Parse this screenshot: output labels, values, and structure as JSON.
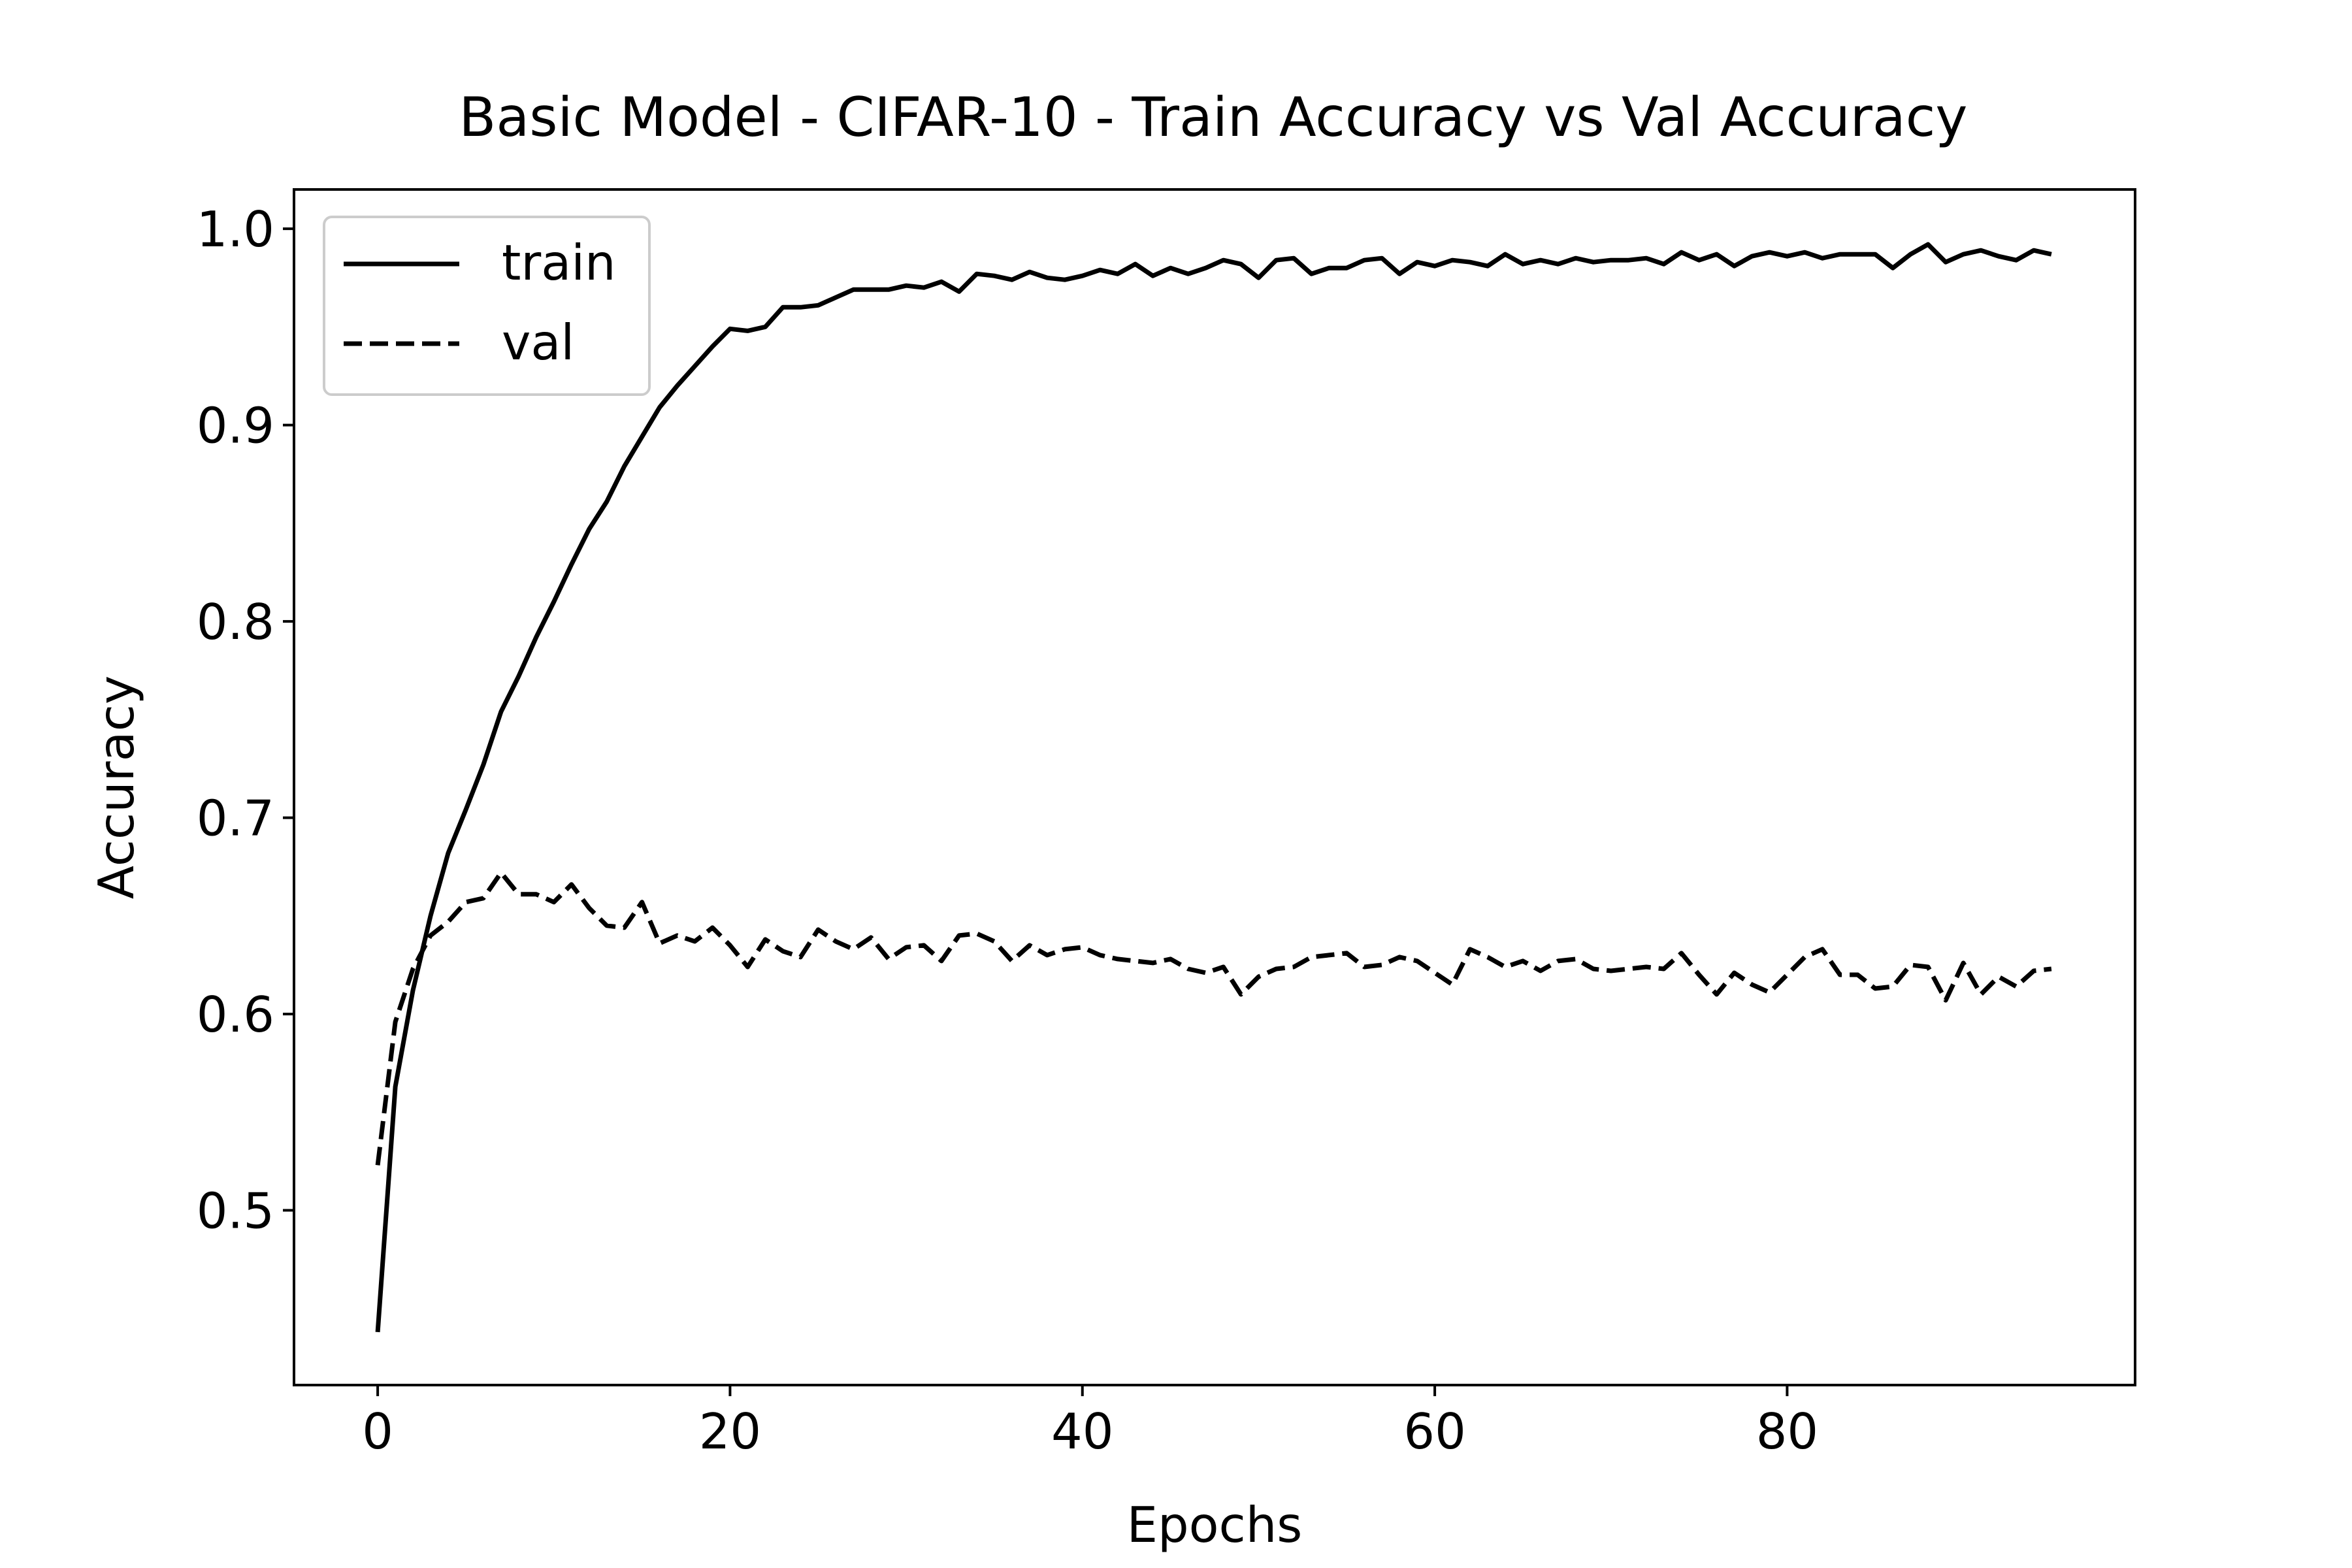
{
  "chart_data": {
    "type": "line",
    "title": "Basic Model - CIFAR-10 - Train Accuracy vs Val Accuracy",
    "xlabel": "Epochs",
    "ylabel": "Accuracy",
    "xlim": [
      -4.75,
      99.75
    ],
    "ylim": [
      0.411,
      1.02
    ],
    "xticks": [
      0,
      20,
      40,
      60,
      80
    ],
    "xtick_labels": [
      "0",
      "20",
      "40",
      "60",
      "80"
    ],
    "yticks": [
      0.5,
      0.6,
      0.7,
      0.8,
      0.9,
      1.0
    ],
    "ytick_labels": [
      "0.5",
      "0.6",
      "0.7",
      "0.8",
      "0.9",
      "1.0"
    ],
    "grid": false,
    "legend_position": "upper-left",
    "series": [
      {
        "name": "train",
        "style": "solid",
        "color": "#000000",
        "x": [
          0,
          1,
          2,
          3,
          4,
          5,
          6,
          7,
          8,
          9,
          10,
          11,
          12,
          13,
          14,
          15,
          16,
          17,
          18,
          19,
          20,
          21,
          22,
          23,
          24,
          25,
          26,
          27,
          28,
          29,
          30,
          31,
          32,
          33,
          34,
          35,
          36,
          37,
          38,
          39,
          40,
          41,
          42,
          43,
          44,
          45,
          46,
          47,
          48,
          49,
          50,
          51,
          52,
          53,
          54,
          55,
          56,
          57,
          58,
          59,
          60,
          61,
          62,
          63,
          64,
          65,
          66,
          67,
          68,
          69,
          70,
          71,
          72,
          73,
          74,
          75,
          76,
          77,
          78,
          79,
          80,
          81,
          82,
          83,
          84,
          85,
          86,
          87,
          88,
          89,
          90,
          91,
          92,
          93,
          94,
          95
        ],
        "values": [
          0.438,
          0.563,
          0.612,
          0.65,
          0.682,
          0.704,
          0.727,
          0.754,
          0.772,
          0.792,
          0.81,
          0.829,
          0.847,
          0.861,
          0.879,
          0.894,
          0.909,
          0.92,
          0.93,
          0.94,
          0.949,
          0.948,
          0.95,
          0.96,
          0.96,
          0.961,
          0.965,
          0.969,
          0.969,
          0.969,
          0.971,
          0.97,
          0.973,
          0.968,
          0.977,
          0.976,
          0.974,
          0.978,
          0.975,
          0.974,
          0.976,
          0.979,
          0.977,
          0.982,
          0.976,
          0.98,
          0.977,
          0.98,
          0.984,
          0.982,
          0.975,
          0.984,
          0.985,
          0.977,
          0.98,
          0.98,
          0.984,
          0.985,
          0.977,
          0.983,
          0.981,
          0.984,
          0.983,
          0.981,
          0.987,
          0.982,
          0.984,
          0.982,
          0.985,
          0.983,
          0.984,
          0.984,
          0.985,
          0.982,
          0.988,
          0.984,
          0.987,
          0.981,
          0.986,
          0.988,
          0.986,
          0.988,
          0.985,
          0.987,
          0.987,
          0.987,
          0.98,
          0.987,
          0.992,
          0.983,
          0.987,
          0.989,
          0.986,
          0.984,
          0.989,
          0.987
        ]
      },
      {
        "name": "val",
        "style": "dashed",
        "color": "#000000",
        "x": [
          0,
          1,
          2,
          3,
          4,
          5,
          6,
          7,
          8,
          9,
          10,
          11,
          12,
          13,
          14,
          15,
          16,
          17,
          18,
          19,
          20,
          21,
          22,
          23,
          24,
          25,
          26,
          27,
          28,
          29,
          30,
          31,
          32,
          33,
          34,
          35,
          36,
          37,
          38,
          39,
          40,
          41,
          42,
          43,
          44,
          45,
          46,
          47,
          48,
          49,
          50,
          51,
          52,
          53,
          54,
          55,
          56,
          57,
          58,
          59,
          60,
          61,
          62,
          63,
          64,
          65,
          66,
          67,
          68,
          69,
          70,
          71,
          72,
          73,
          74,
          75,
          76,
          77,
          78,
          79,
          80,
          81,
          82,
          83,
          84,
          85,
          86,
          87,
          88,
          89,
          90,
          91,
          92,
          93,
          94,
          95
        ],
        "values": [
          0.523,
          0.596,
          0.623,
          0.64,
          0.647,
          0.657,
          0.659,
          0.672,
          0.661,
          0.661,
          0.657,
          0.666,
          0.654,
          0.645,
          0.644,
          0.657,
          0.636,
          0.64,
          0.637,
          0.644,
          0.635,
          0.624,
          0.638,
          0.632,
          0.629,
          0.643,
          0.637,
          0.633,
          0.639,
          0.628,
          0.634,
          0.635,
          0.627,
          0.64,
          0.641,
          0.637,
          0.627,
          0.635,
          0.63,
          0.633,
          0.634,
          0.63,
          0.628,
          0.627,
          0.626,
          0.628,
          0.623,
          0.621,
          0.624,
          0.61,
          0.619,
          0.623,
          0.624,
          0.629,
          0.63,
          0.631,
          0.624,
          0.625,
          0.629,
          0.627,
          0.621,
          0.615,
          0.633,
          0.629,
          0.624,
          0.627,
          0.622,
          0.627,
          0.628,
          0.623,
          0.622,
          0.623,
          0.624,
          0.623,
          0.631,
          0.62,
          0.61,
          0.621,
          0.615,
          0.611,
          0.62,
          0.629,
          0.633,
          0.62,
          0.62,
          0.613,
          0.614,
          0.625,
          0.624,
          0.607,
          0.626,
          0.61,
          0.619,
          0.614,
          0.622,
          0.623
        ]
      }
    ]
  }
}
